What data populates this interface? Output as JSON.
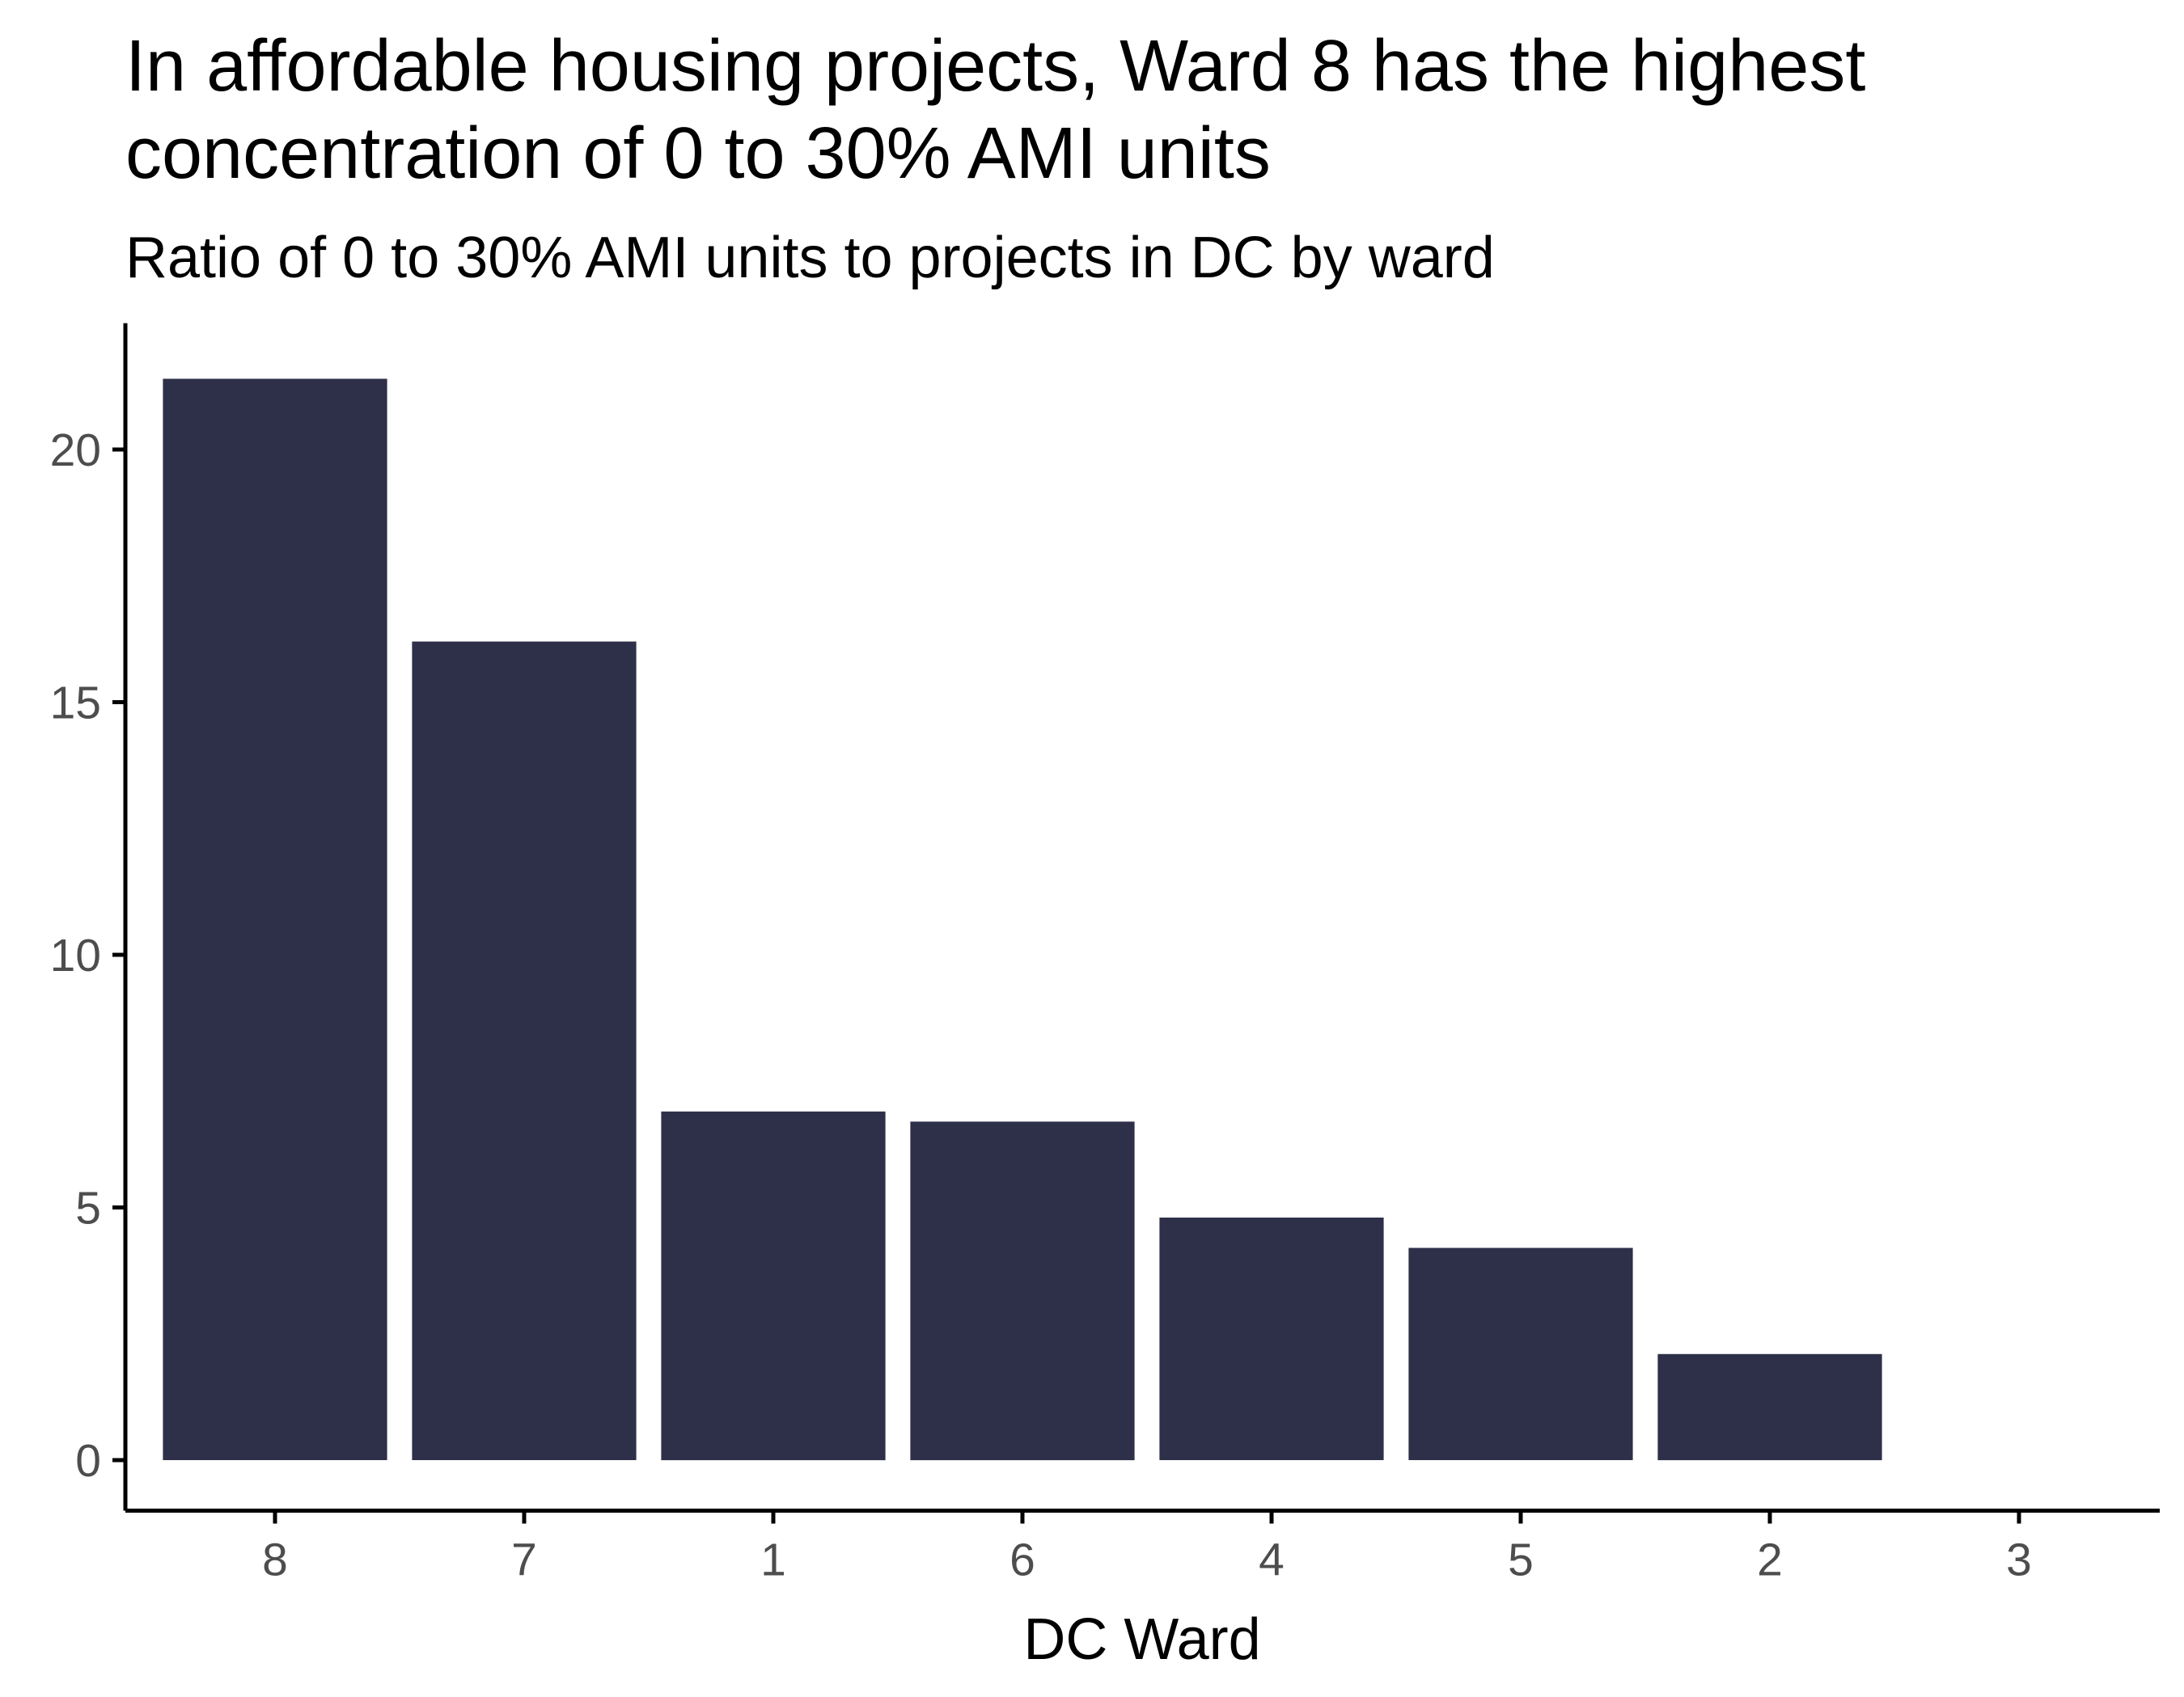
{
  "chart_data": {
    "type": "bar",
    "title_lines": [
      "In affordable housing projects, Ward 8 has the highest",
      "concentration of 0 to 30% AMI units"
    ],
    "subtitle": "Ratio of 0 to 30% AMI units to projects in DC by ward",
    "xlabel": "DC Ward",
    "ylabel": "",
    "categories": [
      "8",
      "7",
      "1",
      "6",
      "4",
      "5",
      "2",
      "3"
    ],
    "values": [
      21.4,
      16.2,
      6.9,
      6.7,
      4.8,
      4.2,
      2.1,
      0
    ],
    "yticks": [
      "0",
      "5",
      "10",
      "15",
      "20"
    ],
    "ylim": [
      -1.0,
      22.5
    ],
    "grid": false,
    "legend": "none",
    "bar_color": "#2e3049",
    "axis_color": "#000000",
    "tick_label_color": "#4d4d4d"
  }
}
